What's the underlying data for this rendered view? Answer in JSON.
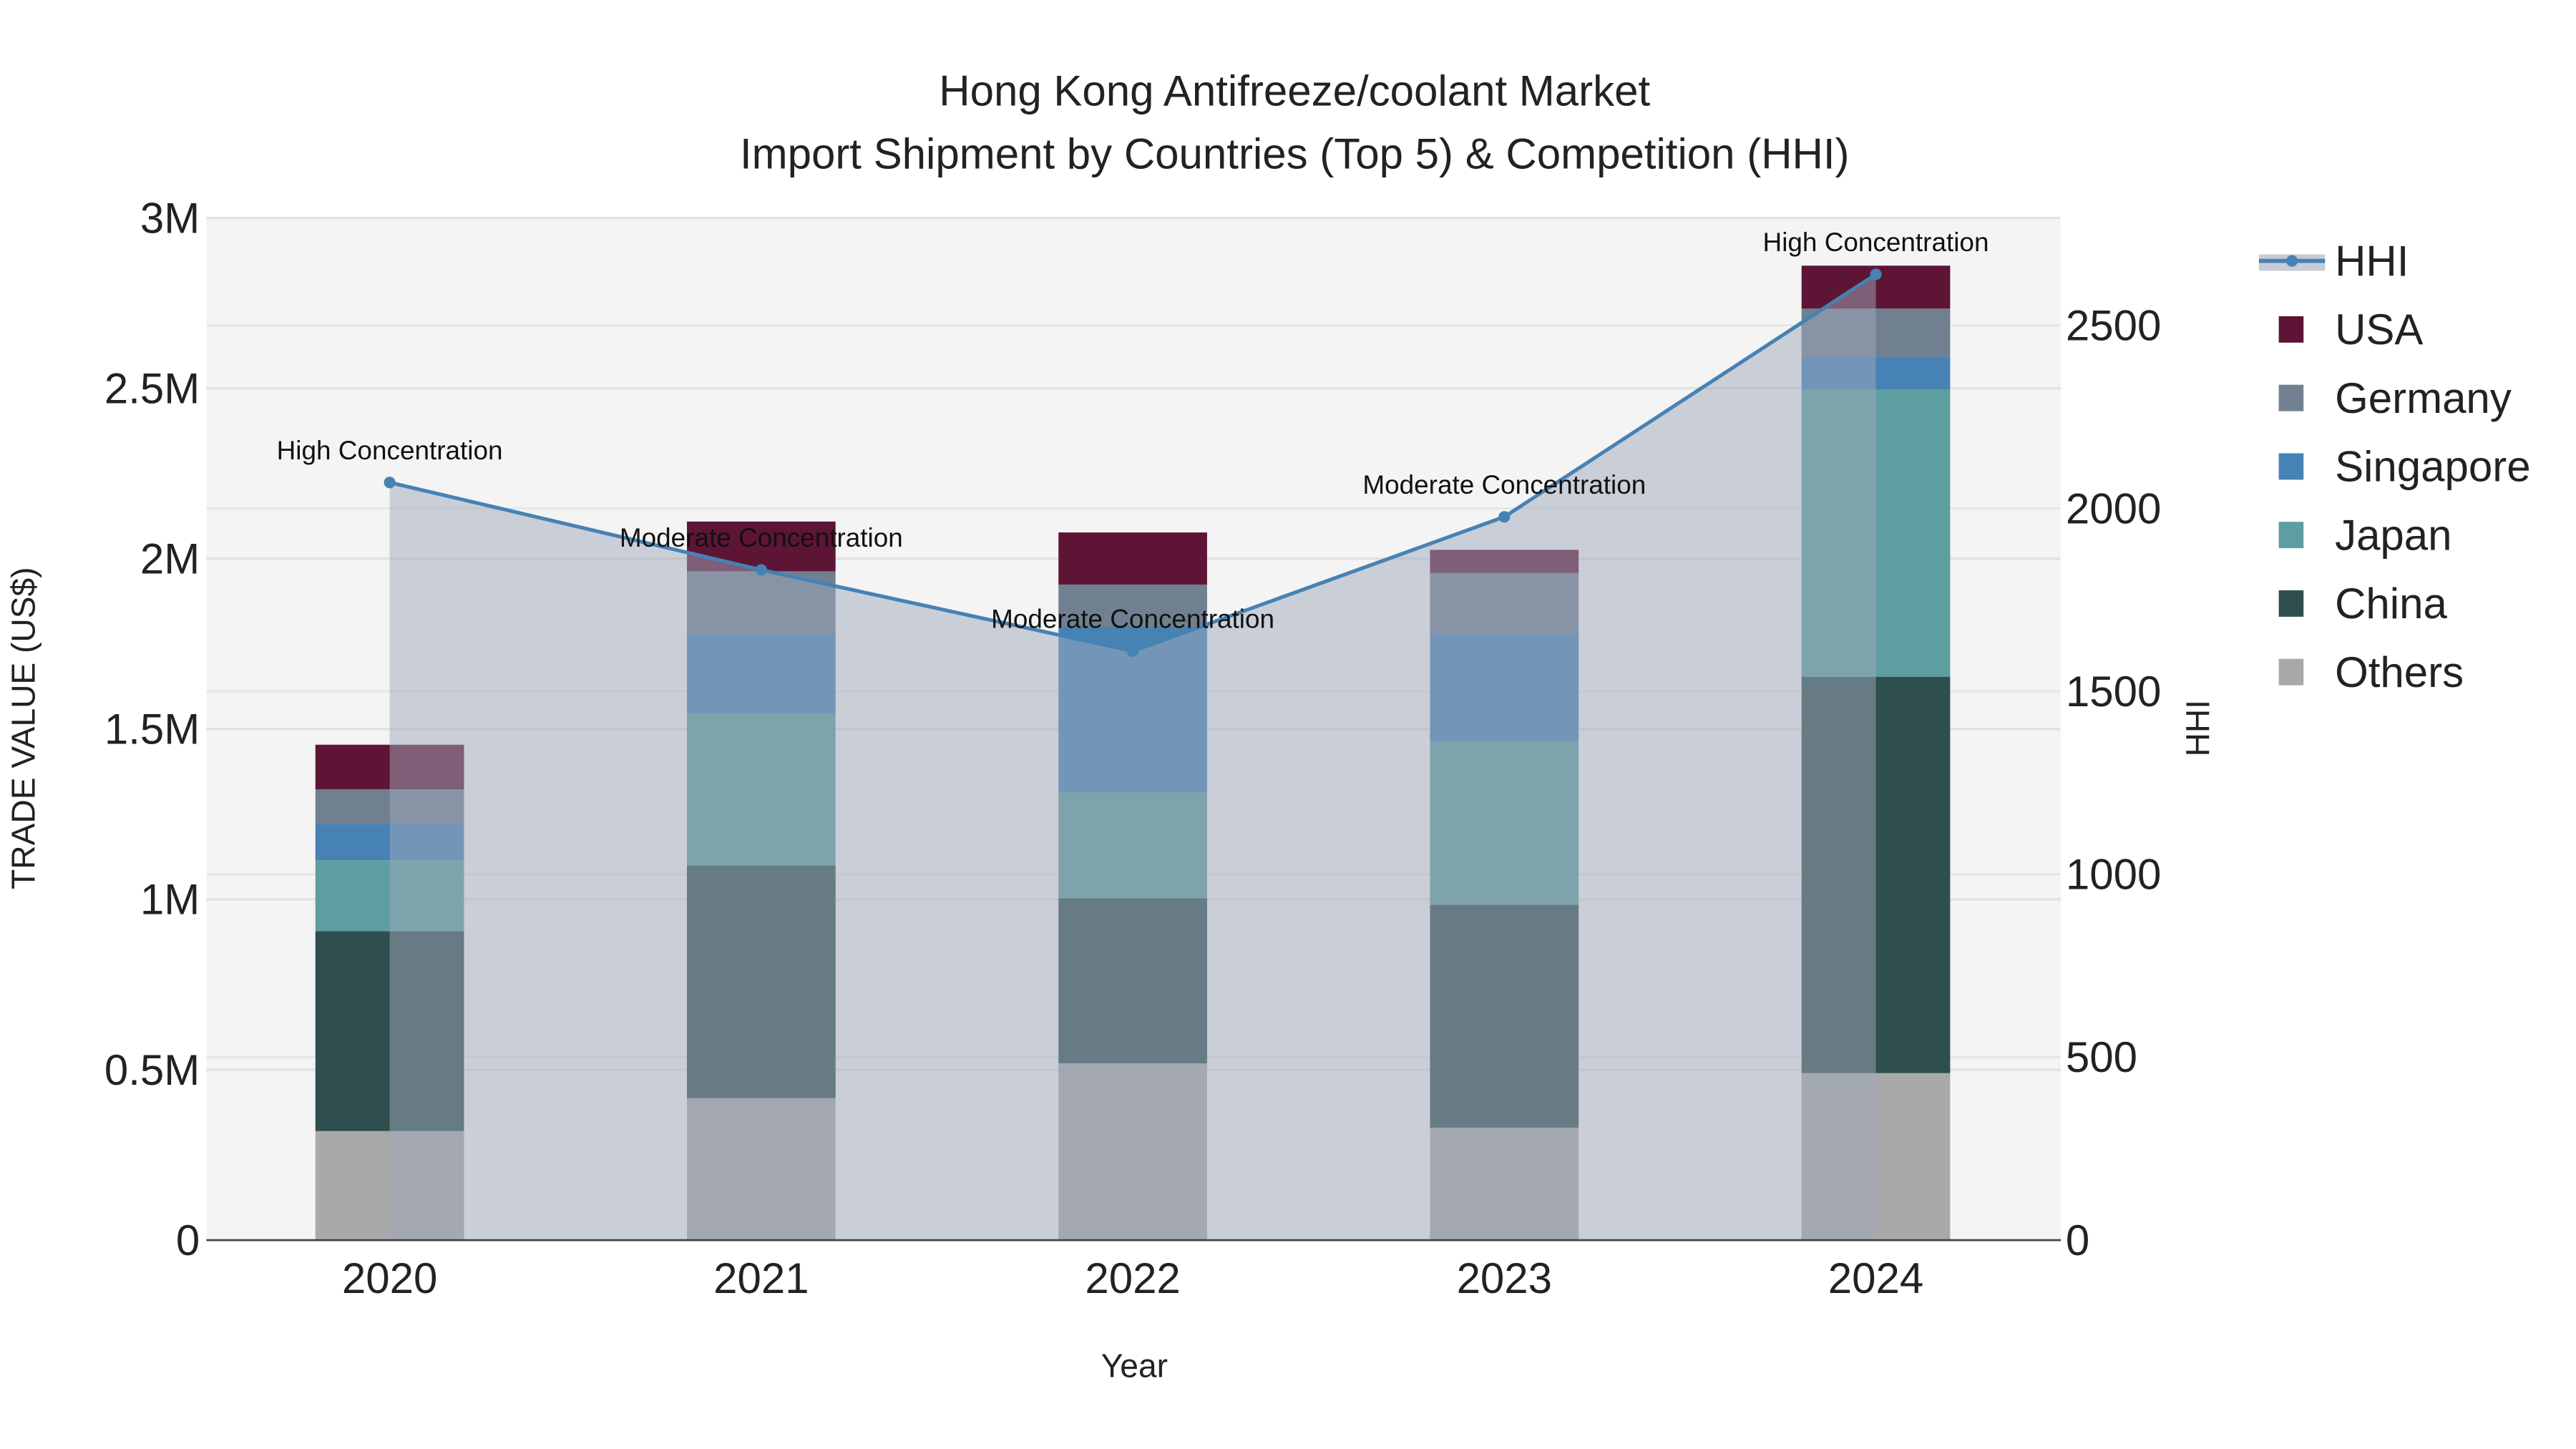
{
  "chart_data": {
    "type": "bar",
    "title": "Hong Kong Antifreeze/coolant Market",
    "subtitle": "Import Shipment by Countries (Top 5) & Competition (HHI)",
    "xlabel": "Year",
    "ylabel": "TRADE VALUE (US$)",
    "y2label": "HHI",
    "categories": [
      "2020",
      "2021",
      "2022",
      "2023",
      "2024"
    ],
    "ylim": [
      0,
      3000000
    ],
    "y_ticks": [
      0,
      500000,
      1000000,
      1500000,
      2000000,
      2500000,
      3000000
    ],
    "y_tick_labels": [
      "0",
      "0.5M",
      "1M",
      "1.5M",
      "2M",
      "2.5M",
      "3M"
    ],
    "y2lim": [
      0,
      2794
    ],
    "y2_ticks": [
      0,
      500,
      1000,
      1500,
      2000,
      2500
    ],
    "y2_tick_labels": [
      "0",
      "500",
      "1000",
      "1500",
      "2000",
      "2500"
    ],
    "stacked": true,
    "grid": true,
    "legend_position": "right",
    "series": [
      {
        "name": "Others",
        "color": "#a9a9a9",
        "values": [
          320000,
          417000,
          519000,
          330000,
          490000
        ]
      },
      {
        "name": "China",
        "color": "#2f4f4f",
        "values": [
          587000,
          683000,
          484000,
          654000,
          1163000
        ]
      },
      {
        "name": "Japan",
        "color": "#5f9ea0",
        "values": [
          208000,
          446000,
          311000,
          480000,
          843000
        ]
      },
      {
        "name": "Singapore",
        "color": "#4682b4",
        "values": [
          107000,
          233000,
          486000,
          315000,
          97000
        ]
      },
      {
        "name": "Germany",
        "color": "#708090",
        "values": [
          101000,
          184000,
          124000,
          179000,
          141000
        ]
      },
      {
        "name": "USA",
        "color": "#5e1535",
        "values": [
          131000,
          146000,
          153000,
          68000,
          126000
        ]
      }
    ],
    "line": {
      "name": "HHI",
      "color": "#4682b4",
      "values": [
        2071,
        1832,
        1610,
        1977,
        2640
      ],
      "annotations": [
        "High Concentration",
        "Moderate Concentration",
        "Moderate Concentration",
        "Moderate Concentration",
        "High Concentration"
      ]
    },
    "legend": [
      "HHI",
      "USA",
      "Germany",
      "Singapore",
      "Japan",
      "China",
      "Others"
    ]
  }
}
